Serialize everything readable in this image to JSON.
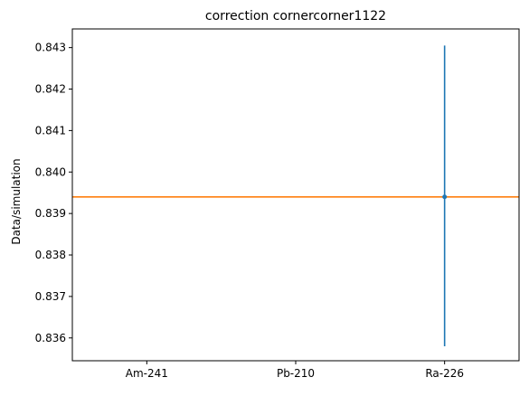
{
  "chart_data": {
    "type": "scatter",
    "title": "correction cornercorner1122",
    "xlabel": "",
    "ylabel": "Data/simulation",
    "categories": [
      "Am-241",
      "Pb-210",
      "Ra-226"
    ],
    "ylim": [
      0.83545,
      0.84345
    ],
    "y_ticks": [
      "0.836",
      "0.837",
      "0.838",
      "0.839",
      "0.840",
      "0.841",
      "0.842",
      "0.843"
    ],
    "points": [
      {
        "category": "Ra-226",
        "y": 0.8394,
        "yerr_low": 0.8358,
        "yerr_high": 0.84305
      }
    ],
    "hline": {
      "y": 0.8394
    },
    "grid": false,
    "legend": "none",
    "colors": {
      "points": "#1f77b4",
      "hline": "#ff7f0e"
    }
  }
}
